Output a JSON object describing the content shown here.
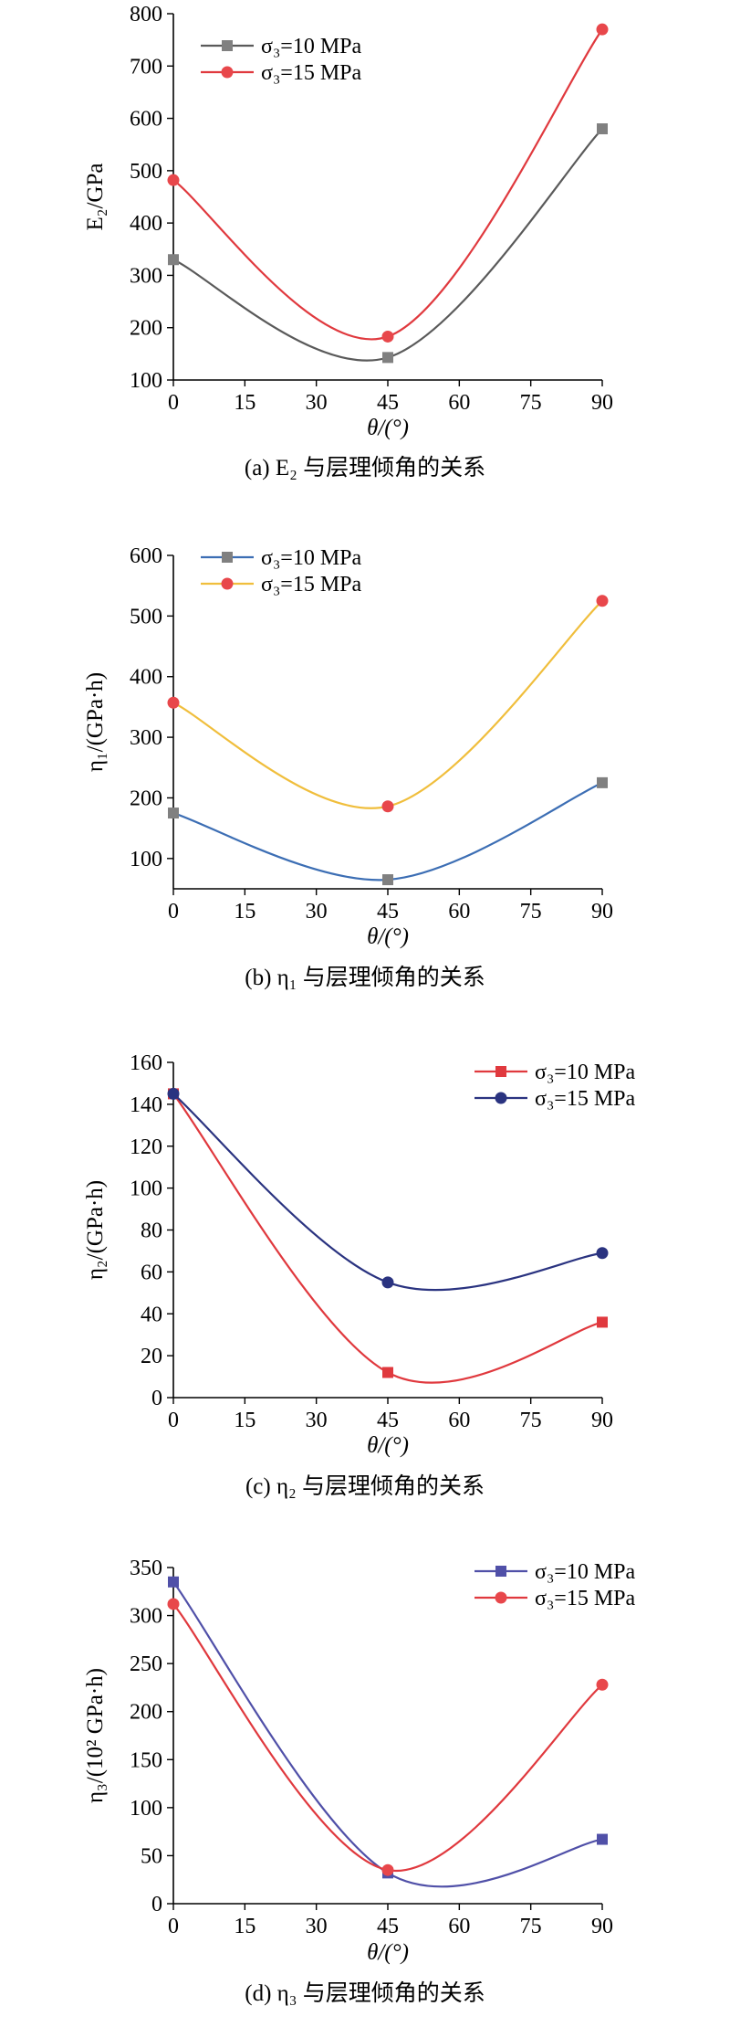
{
  "panels": [
    {
      "caption": "(a) E₂ 与层理倾角的关系",
      "chart_data": {
        "type": "line",
        "xlabel": "θ/(°)",
        "ylabel": "E₂/GPa",
        "xlim": [
          0,
          90
        ],
        "ylim": [
          100,
          800
        ],
        "xticks": [
          0,
          15,
          30,
          45,
          60,
          75,
          90
        ],
        "yticks": [
          100,
          200,
          300,
          400,
          500,
          600,
          700,
          800
        ],
        "x": [
          0,
          45,
          90
        ],
        "legend_position": "top-left",
        "series": [
          {
            "name": "σ₃=10 MPa",
            "values": [
              330,
              143,
              580
            ],
            "line_color": "#5a5a5a",
            "marker_color": "#808080",
            "marker": "square"
          },
          {
            "name": "σ₃=15 MPa",
            "values": [
              482,
              183,
              770
            ],
            "line_color": "#e0393e",
            "marker_color": "#e8474b",
            "marker": "circle"
          }
        ]
      }
    },
    {
      "caption": "(b) η₁ 与层理倾角的关系",
      "chart_data": {
        "type": "line",
        "xlabel": "θ/(°)",
        "ylabel": "η₁/(GPa·h)",
        "xlim": [
          0,
          90
        ],
        "ylim": [
          50,
          600
        ],
        "xticks": [
          0,
          15,
          30,
          45,
          60,
          75,
          90
        ],
        "yticks": [
          100,
          200,
          300,
          400,
          500,
          600
        ],
        "x": [
          0,
          45,
          90
        ],
        "legend_position": "top-left",
        "series": [
          {
            "name": "σ₃=10 MPa",
            "values": [
              175,
              65,
              225
            ],
            "line_color": "#3c6eb4",
            "marker_color": "#808080",
            "marker": "square"
          },
          {
            "name": "σ₃=15 MPa",
            "values": [
              357,
              186,
              525
            ],
            "line_color": "#f0be3c",
            "marker_color": "#e8474b",
            "marker": "circle"
          }
        ]
      }
    },
    {
      "caption": "(c) η₂ 与层理倾角的关系",
      "chart_data": {
        "type": "line",
        "xlabel": "θ/(°)",
        "ylabel": "η₂/(GPa·h)",
        "xlim": [
          0,
          90
        ],
        "ylim": [
          0,
          160
        ],
        "xticks": [
          0,
          15,
          30,
          45,
          60,
          75,
          90
        ],
        "yticks": [
          0,
          20,
          40,
          60,
          80,
          100,
          120,
          140,
          160
        ],
        "x": [
          0,
          45,
          90
        ],
        "legend_position": "top-right",
        "series": [
          {
            "name": "σ₃=10 MPa",
            "values": [
              145,
              12,
              36
            ],
            "line_color": "#e0393e",
            "marker_color": "#e0393e",
            "marker": "square"
          },
          {
            "name": "σ₃=15 MPa",
            "values": [
              145,
              55,
              69
            ],
            "line_color": "#2a3380",
            "marker_color": "#2a3380",
            "marker": "circle"
          }
        ]
      }
    },
    {
      "caption": "(d) η₃ 与层理倾角的关系",
      "chart_data": {
        "type": "line",
        "xlabel": "θ/(°)",
        "ylabel": "η₃/(10² GPa·h)",
        "xlim": [
          0,
          90
        ],
        "ylim": [
          0,
          350
        ],
        "xticks": [
          0,
          15,
          30,
          45,
          60,
          75,
          90
        ],
        "yticks": [
          0,
          50,
          100,
          150,
          200,
          250,
          300,
          350
        ],
        "x": [
          0,
          45,
          90
        ],
        "legend_position": "top-right",
        "series": [
          {
            "name": "σ₃=10 MPa",
            "values": [
              335,
              32,
              67
            ],
            "line_color": "#5050a8",
            "marker_color": "#5050a8",
            "marker": "square"
          },
          {
            "name": "σ₃=15 MPa",
            "values": [
              312,
              35,
              228
            ],
            "line_color": "#e0393e",
            "marker_color": "#e8474b",
            "marker": "circle"
          }
        ]
      }
    }
  ]
}
